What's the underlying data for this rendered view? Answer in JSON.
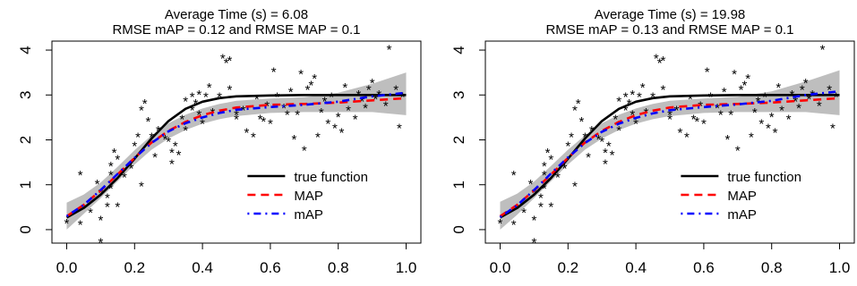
{
  "chart_data": [
    {
      "type": "line",
      "title": "Average Time (s) =  6.08",
      "subtitle": "RMSE mAP =  0.12 and RMSE MAP =  0.1",
      "xlabel": "",
      "ylabel": "",
      "xlim": [
        0,
        1
      ],
      "ylim": [
        -0.3,
        4.2
      ],
      "xticks": [
        "0.0",
        "0.2",
        "0.4",
        "0.6",
        "0.8",
        "1.0"
      ],
      "yticks": [
        "0",
        "1",
        "2",
        "3",
        "4"
      ],
      "grid": false,
      "legend": "bottom-right",
      "series": [
        {
          "name": "true function",
          "color": "#000000",
          "style": "solid",
          "x": [
            0,
            0.05,
            0.1,
            0.15,
            0.2,
            0.25,
            0.3,
            0.35,
            0.4,
            0.45,
            0.5,
            0.6,
            0.7,
            0.8,
            0.9,
            1.0
          ],
          "y": [
            0.27,
            0.48,
            0.78,
            1.15,
            1.58,
            2.03,
            2.42,
            2.69,
            2.85,
            2.93,
            2.97,
            2.99,
            3.0,
            3.0,
            3.0,
            3.0
          ]
        },
        {
          "name": "MAP",
          "color": "#ff0000",
          "style": "dashed",
          "x": [
            0,
            0.05,
            0.1,
            0.15,
            0.2,
            0.25,
            0.3,
            0.35,
            0.4,
            0.45,
            0.5,
            0.6,
            0.7,
            0.8,
            0.9,
            1.0
          ],
          "y": [
            0.3,
            0.55,
            0.87,
            1.23,
            1.6,
            1.94,
            2.2,
            2.4,
            2.55,
            2.65,
            2.72,
            2.78,
            2.8,
            2.83,
            2.88,
            2.93
          ]
        },
        {
          "name": "mAP",
          "color": "#0000ff",
          "style": "dotdash",
          "x": [
            0,
            0.05,
            0.1,
            0.15,
            0.2,
            0.25,
            0.3,
            0.35,
            0.4,
            0.45,
            0.5,
            0.6,
            0.7,
            0.8,
            0.9,
            1.0
          ],
          "y": [
            0.3,
            0.55,
            0.88,
            1.24,
            1.6,
            1.93,
            2.19,
            2.37,
            2.5,
            2.6,
            2.67,
            2.73,
            2.78,
            2.85,
            2.97,
            3.05
          ]
        }
      ],
      "band": {
        "color": "#bebebe",
        "x": [
          0,
          0.05,
          0.1,
          0.15,
          0.2,
          0.25,
          0.3,
          0.35,
          0.4,
          0.45,
          0.5,
          0.6,
          0.7,
          0.8,
          0.9,
          1.0
        ],
        "lower": [
          0.0,
          0.35,
          0.7,
          1.08,
          1.45,
          1.78,
          2.03,
          2.22,
          2.36,
          2.46,
          2.53,
          2.6,
          2.62,
          2.62,
          2.62,
          2.55
        ],
        "upper": [
          0.6,
          0.78,
          1.05,
          1.4,
          1.77,
          2.1,
          2.37,
          2.56,
          2.7,
          2.8,
          2.87,
          2.92,
          2.95,
          3.05,
          3.25,
          3.5
        ]
      },
      "points": [
        [
          0.0,
          0.18
        ],
        [
          0.04,
          1.25
        ],
        [
          0.04,
          0.15
        ],
        [
          0.07,
          0.42
        ],
        [
          0.09,
          1.05
        ],
        [
          0.1,
          0.85
        ],
        [
          0.1,
          -0.25
        ],
        [
          0.1,
          0.25
        ],
        [
          0.12,
          0.55
        ],
        [
          0.12,
          0.75
        ],
        [
          0.13,
          1.45
        ],
        [
          0.13,
          1.25
        ],
        [
          0.13,
          0.95
        ],
        [
          0.14,
          1.75
        ],
        [
          0.15,
          1.6
        ],
        [
          0.15,
          0.55
        ],
        [
          0.17,
          1.2
        ],
        [
          0.19,
          1.4
        ],
        [
          0.2,
          1.9
        ],
        [
          0.21,
          2.1
        ],
        [
          0.22,
          1.0
        ],
        [
          0.22,
          2.7
        ],
        [
          0.23,
          2.85
        ],
        [
          0.24,
          2.45
        ],
        [
          0.25,
          2.1
        ],
        [
          0.26,
          1.65
        ],
        [
          0.27,
          2.25
        ],
        [
          0.29,
          2.05
        ],
        [
          0.3,
          2.0
        ],
        [
          0.31,
          1.75
        ],
        [
          0.31,
          1.5
        ],
        [
          0.32,
          1.9
        ],
        [
          0.33,
          1.7
        ],
        [
          0.34,
          2.5
        ],
        [
          0.35,
          2.9
        ],
        [
          0.35,
          2.25
        ],
        [
          0.37,
          2.7
        ],
        [
          0.37,
          3.0
        ],
        [
          0.38,
          2.85
        ],
        [
          0.39,
          3.05
        ],
        [
          0.39,
          2.6
        ],
        [
          0.4,
          2.4
        ],
        [
          0.41,
          3.0
        ],
        [
          0.42,
          3.2
        ],
        [
          0.43,
          2.65
        ],
        [
          0.45,
          3.0
        ],
        [
          0.46,
          3.85
        ],
        [
          0.47,
          3.75
        ],
        [
          0.48,
          3.8
        ],
        [
          0.48,
          3.15
        ],
        [
          0.5,
          2.6
        ],
        [
          0.5,
          2.5
        ],
        [
          0.52,
          2.7
        ],
        [
          0.53,
          2.2
        ],
        [
          0.55,
          2.1
        ],
        [
          0.56,
          2.95
        ],
        [
          0.57,
          2.5
        ],
        [
          0.58,
          2.45
        ],
        [
          0.59,
          2.8
        ],
        [
          0.6,
          2.4
        ],
        [
          0.61,
          3.55
        ],
        [
          0.62,
          3.0
        ],
        [
          0.64,
          2.75
        ],
        [
          0.65,
          2.6
        ],
        [
          0.66,
          3.1
        ],
        [
          0.67,
          2.05
        ],
        [
          0.68,
          2.6
        ],
        [
          0.69,
          3.5
        ],
        [
          0.7,
          1.8
        ],
        [
          0.71,
          3.15
        ],
        [
          0.72,
          3.25
        ],
        [
          0.73,
          3.4
        ],
        [
          0.74,
          2.1
        ],
        [
          0.75,
          2.65
        ],
        [
          0.76,
          2.9
        ],
        [
          0.77,
          2.4
        ],
        [
          0.78,
          3.0
        ],
        [
          0.79,
          2.3
        ],
        [
          0.8,
          2.55
        ],
        [
          0.81,
          2.2
        ],
        [
          0.82,
          3.2
        ],
        [
          0.83,
          2.7
        ],
        [
          0.85,
          2.5
        ],
        [
          0.86,
          3.05
        ],
        [
          0.87,
          2.9
        ],
        [
          0.88,
          2.75
        ],
        [
          0.89,
          3.15
        ],
        [
          0.9,
          3.3
        ],
        [
          0.91,
          2.95
        ],
        [
          0.92,
          3.05
        ],
        [
          0.94,
          2.8
        ],
        [
          0.95,
          4.05
        ],
        [
          0.97,
          3.15
        ],
        [
          0.98,
          2.3
        ],
        [
          0.99,
          3.0
        ]
      ]
    },
    {
      "type": "line",
      "title": "Average Time (s) =  19.98",
      "subtitle": "RMSE mAP =  0.13 and RMSE MAP =  0.1",
      "xlabel": "",
      "ylabel": "",
      "xlim": [
        0,
        1
      ],
      "ylim": [
        -0.3,
        4.2
      ],
      "xticks": [
        "0.0",
        "0.2",
        "0.4",
        "0.6",
        "0.8",
        "1.0"
      ],
      "yticks": [
        "0",
        "1",
        "2",
        "3",
        "4"
      ],
      "grid": false,
      "legend": "bottom-right",
      "series": [
        {
          "name": "true function",
          "color": "#000000",
          "style": "solid",
          "x": [
            0,
            0.05,
            0.1,
            0.15,
            0.2,
            0.25,
            0.3,
            0.35,
            0.4,
            0.45,
            0.5,
            0.6,
            0.7,
            0.8,
            0.9,
            1.0
          ],
          "y": [
            0.27,
            0.48,
            0.78,
            1.15,
            1.58,
            2.03,
            2.42,
            2.69,
            2.85,
            2.93,
            2.97,
            2.99,
            3.0,
            3.0,
            3.0,
            3.0
          ]
        },
        {
          "name": "MAP",
          "color": "#ff0000",
          "style": "dashed",
          "x": [
            0,
            0.05,
            0.1,
            0.15,
            0.2,
            0.25,
            0.3,
            0.35,
            0.4,
            0.45,
            0.5,
            0.6,
            0.7,
            0.8,
            0.9,
            1.0
          ],
          "y": [
            0.3,
            0.55,
            0.87,
            1.23,
            1.6,
            1.94,
            2.2,
            2.4,
            2.55,
            2.65,
            2.72,
            2.78,
            2.8,
            2.83,
            2.88,
            2.93
          ]
        },
        {
          "name": "mAP",
          "color": "#0000ff",
          "style": "dotdash",
          "x": [
            0,
            0.05,
            0.1,
            0.15,
            0.2,
            0.25,
            0.3,
            0.35,
            0.4,
            0.45,
            0.5,
            0.6,
            0.7,
            0.8,
            0.9,
            1.0
          ],
          "y": [
            0.28,
            0.54,
            0.88,
            1.25,
            1.61,
            1.93,
            2.18,
            2.36,
            2.49,
            2.59,
            2.66,
            2.73,
            2.79,
            2.87,
            3.0,
            3.08
          ]
        }
      ],
      "band": {
        "color": "#bebebe",
        "x": [
          0,
          0.05,
          0.1,
          0.15,
          0.2,
          0.25,
          0.3,
          0.35,
          0.4,
          0.45,
          0.5,
          0.6,
          0.7,
          0.8,
          0.9,
          1.0
        ],
        "lower": [
          0.0,
          0.33,
          0.7,
          1.08,
          1.45,
          1.78,
          2.03,
          2.22,
          2.36,
          2.46,
          2.53,
          2.6,
          2.62,
          2.62,
          2.62,
          2.55
        ],
        "upper": [
          0.62,
          0.8,
          1.07,
          1.42,
          1.78,
          2.1,
          2.37,
          2.56,
          2.7,
          2.8,
          2.87,
          2.92,
          2.96,
          3.08,
          3.3,
          3.55
        ]
      },
      "points": [
        [
          0.0,
          0.18
        ],
        [
          0.04,
          1.25
        ],
        [
          0.04,
          0.15
        ],
        [
          0.07,
          0.42
        ],
        [
          0.09,
          1.05
        ],
        [
          0.1,
          0.85
        ],
        [
          0.1,
          -0.25
        ],
        [
          0.1,
          0.25
        ],
        [
          0.12,
          0.55
        ],
        [
          0.12,
          0.75
        ],
        [
          0.13,
          1.45
        ],
        [
          0.13,
          1.25
        ],
        [
          0.13,
          0.95
        ],
        [
          0.14,
          1.75
        ],
        [
          0.15,
          1.6
        ],
        [
          0.15,
          0.55
        ],
        [
          0.17,
          1.2
        ],
        [
          0.19,
          1.4
        ],
        [
          0.2,
          1.9
        ],
        [
          0.21,
          2.1
        ],
        [
          0.22,
          1.0
        ],
        [
          0.22,
          2.7
        ],
        [
          0.23,
          2.85
        ],
        [
          0.24,
          2.45
        ],
        [
          0.25,
          2.1
        ],
        [
          0.26,
          1.65
        ],
        [
          0.27,
          2.25
        ],
        [
          0.29,
          2.05
        ],
        [
          0.3,
          2.0
        ],
        [
          0.31,
          1.75
        ],
        [
          0.31,
          1.5
        ],
        [
          0.32,
          1.9
        ],
        [
          0.33,
          1.7
        ],
        [
          0.34,
          2.5
        ],
        [
          0.35,
          2.9
        ],
        [
          0.35,
          2.25
        ],
        [
          0.37,
          2.7
        ],
        [
          0.37,
          3.0
        ],
        [
          0.38,
          2.85
        ],
        [
          0.39,
          3.05
        ],
        [
          0.39,
          2.6
        ],
        [
          0.4,
          2.4
        ],
        [
          0.41,
          3.0
        ],
        [
          0.42,
          3.2
        ],
        [
          0.43,
          2.65
        ],
        [
          0.45,
          3.0
        ],
        [
          0.46,
          3.85
        ],
        [
          0.47,
          3.75
        ],
        [
          0.48,
          3.8
        ],
        [
          0.48,
          3.15
        ],
        [
          0.5,
          2.6
        ],
        [
          0.5,
          2.5
        ],
        [
          0.52,
          2.7
        ],
        [
          0.53,
          2.2
        ],
        [
          0.55,
          2.1
        ],
        [
          0.56,
          2.95
        ],
        [
          0.57,
          2.5
        ],
        [
          0.58,
          2.45
        ],
        [
          0.59,
          2.8
        ],
        [
          0.6,
          2.4
        ],
        [
          0.61,
          3.55
        ],
        [
          0.62,
          3.0
        ],
        [
          0.64,
          2.75
        ],
        [
          0.65,
          2.6
        ],
        [
          0.66,
          3.1
        ],
        [
          0.67,
          2.05
        ],
        [
          0.68,
          2.6
        ],
        [
          0.69,
          3.5
        ],
        [
          0.7,
          1.8
        ],
        [
          0.71,
          3.15
        ],
        [
          0.72,
          3.25
        ],
        [
          0.73,
          3.4
        ],
        [
          0.74,
          2.1
        ],
        [
          0.75,
          2.65
        ],
        [
          0.76,
          2.9
        ],
        [
          0.77,
          2.4
        ],
        [
          0.78,
          3.0
        ],
        [
          0.79,
          2.3
        ],
        [
          0.8,
          2.55
        ],
        [
          0.81,
          2.2
        ],
        [
          0.82,
          3.2
        ],
        [
          0.83,
          2.7
        ],
        [
          0.85,
          2.5
        ],
        [
          0.86,
          3.05
        ],
        [
          0.87,
          2.9
        ],
        [
          0.88,
          2.75
        ],
        [
          0.89,
          3.15
        ],
        [
          0.9,
          3.3
        ],
        [
          0.91,
          2.95
        ],
        [
          0.92,
          3.05
        ],
        [
          0.94,
          2.8
        ],
        [
          0.95,
          4.05
        ],
        [
          0.97,
          3.15
        ],
        [
          0.98,
          2.3
        ],
        [
          0.99,
          3.0
        ]
      ]
    }
  ]
}
